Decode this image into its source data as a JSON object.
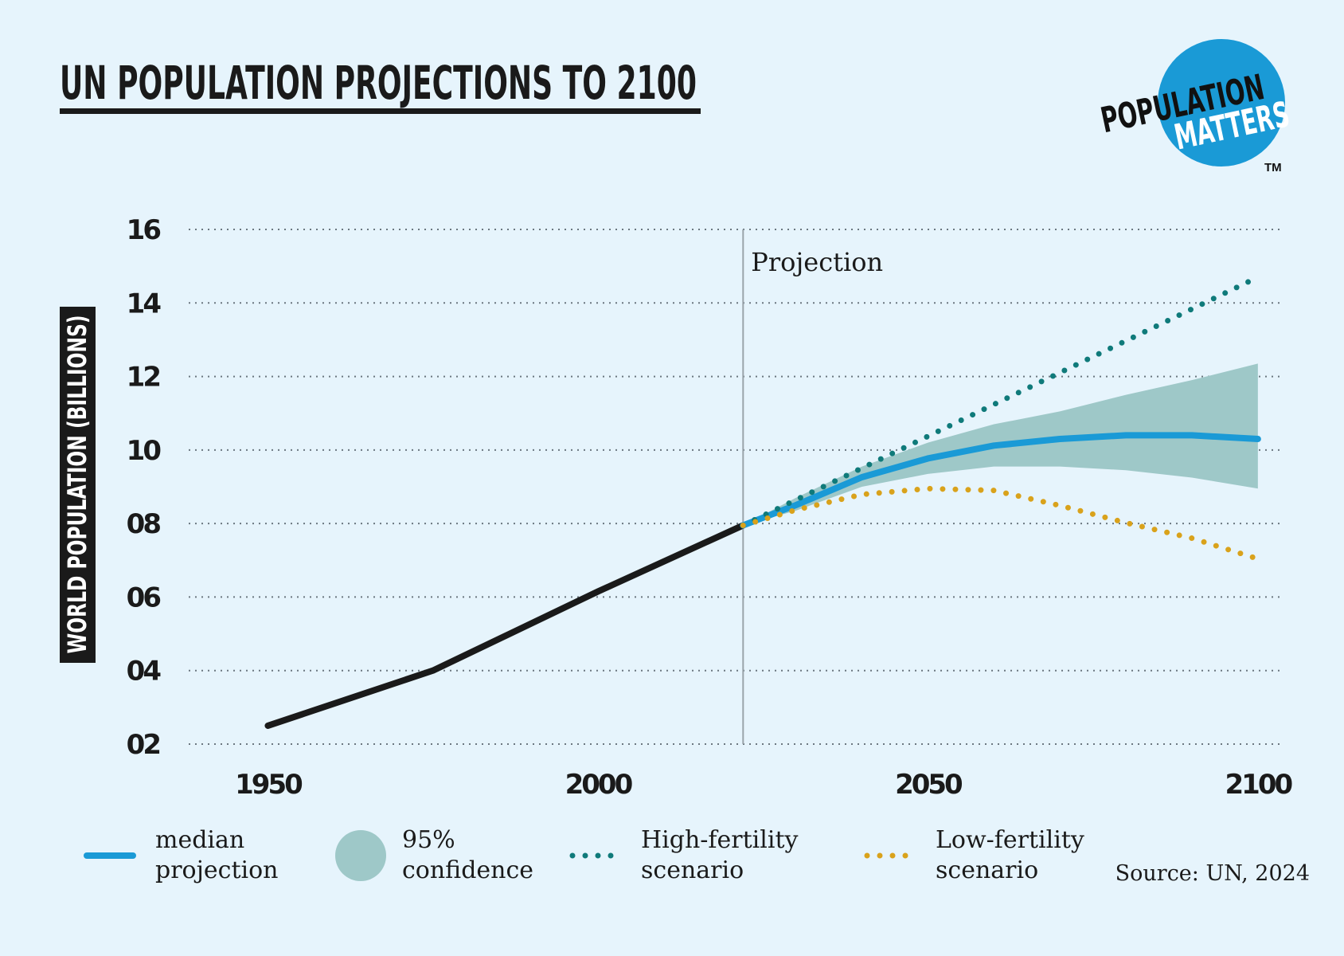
{
  "title": "UN POPULATION PROJECTIONS TO 2100",
  "logo": {
    "line1": "POPULATION",
    "line2": "MATTERS",
    "mark": "TM"
  },
  "chart_data": {
    "type": "line",
    "ylabel": "WORLD POPULATION (BILLIONS)",
    "xlim": [
      1938,
      2104
    ],
    "xticks": [
      1950,
      2000,
      2050,
      2100
    ],
    "ylim": [
      2,
      16
    ],
    "yticks": [
      {
        "value": 2,
        "label": "02"
      },
      {
        "value": 4,
        "label": "04"
      },
      {
        "value": 6,
        "label": "06"
      },
      {
        "value": 8,
        "label": "08"
      },
      10,
      12,
      14,
      16
    ],
    "grid": true,
    "projection_start": 2022,
    "annotation": "Projection",
    "source": "Source: UN, 2024",
    "series": [
      {
        "style": "solid",
        "color": "#1a1a1a",
        "x": [
          1950,
          1975,
          2000,
          2022
        ],
        "values": [
          2.5,
          4.0,
          6.15,
          7.95
        ]
      },
      {
        "name": "median projection",
        "style": "solid",
        "color": "#1a9ad6",
        "x": [
          2022,
          2030,
          2040,
          2050,
          2060,
          2070,
          2080,
          2090,
          2100
        ],
        "values": [
          7.95,
          8.5,
          9.26,
          9.77,
          10.12,
          10.3,
          10.4,
          10.4,
          10.3
        ]
      },
      {
        "name": "95% confidence",
        "style": "band",
        "color": "#9ec8c8",
        "x": [
          2022,
          2030,
          2040,
          2050,
          2060,
          2070,
          2080,
          2090,
          2100
        ],
        "lower": [
          7.95,
          8.35,
          9.0,
          9.35,
          9.55,
          9.55,
          9.45,
          9.25,
          8.95
        ],
        "upper": [
          7.95,
          8.7,
          9.55,
          10.2,
          10.7,
          11.05,
          11.5,
          11.9,
          12.35
        ]
      },
      {
        "name": "High-fertility scenario",
        "style": "dotted",
        "color": "#0f7a7a",
        "x": [
          2022,
          2100
        ],
        "values": [
          7.95,
          14.7
        ]
      },
      {
        "name": "Low-fertility scenario",
        "style": "dotted",
        "color": "#d9a21b",
        "x": [
          2022,
          2030,
          2040,
          2050,
          2060,
          2070,
          2080,
          2090,
          2100
        ],
        "values": [
          7.95,
          8.37,
          8.79,
          8.95,
          8.9,
          8.49,
          8.02,
          7.6,
          7.04
        ]
      }
    ]
  }
}
